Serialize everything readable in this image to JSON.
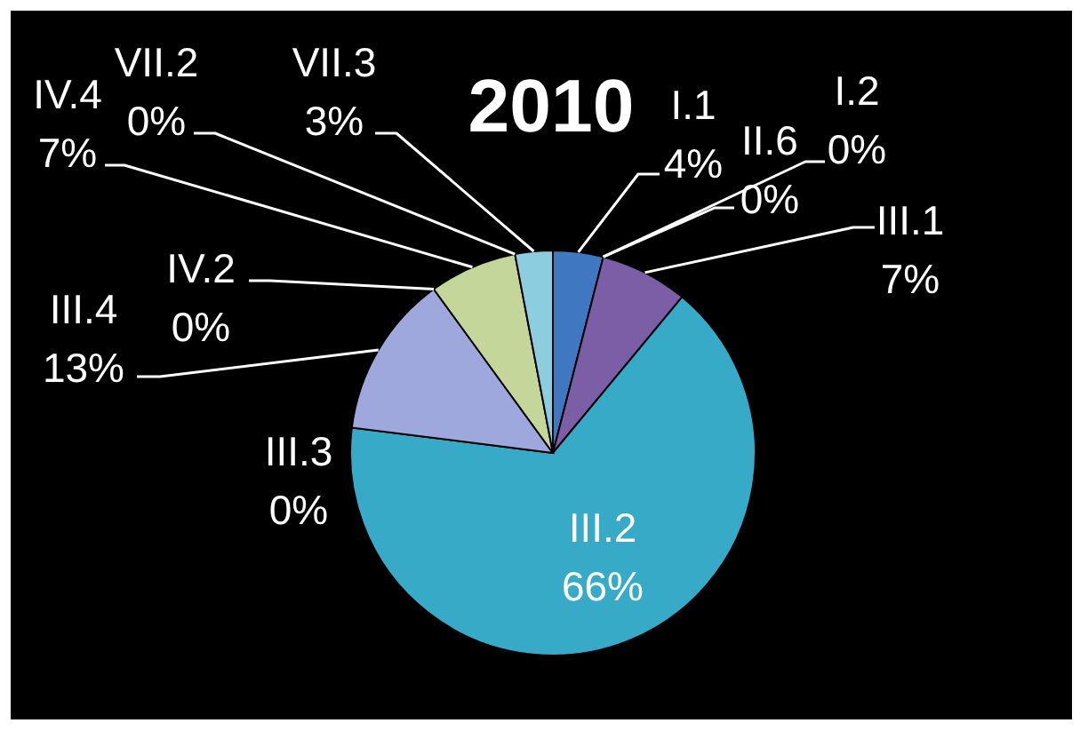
{
  "chart_data": {
    "type": "pie",
    "title": "2010",
    "categories": [
      "I.1",
      "I.2",
      "II.6",
      "III.1",
      "III.2",
      "III.3",
      "III.4",
      "IV.2",
      "IV.4",
      "VII.2",
      "VII.3"
    ],
    "values": [
      4,
      0,
      0,
      7,
      66,
      0,
      13,
      0,
      7,
      0,
      3
    ],
    "value_labels": [
      "4%",
      "0%",
      "0%",
      "7%",
      "66%",
      "0%",
      "13%",
      "0%",
      "7%",
      "0%",
      "3%"
    ],
    "colors": [
      "#3f77c0",
      "#c0504d",
      "#9bbb59",
      "#7b5ea5",
      "#37aac8",
      "#f79646",
      "#9ea8dc",
      "#d99694",
      "#c4d699",
      "#b3a2c7",
      "#8dcde0"
    ]
  }
}
